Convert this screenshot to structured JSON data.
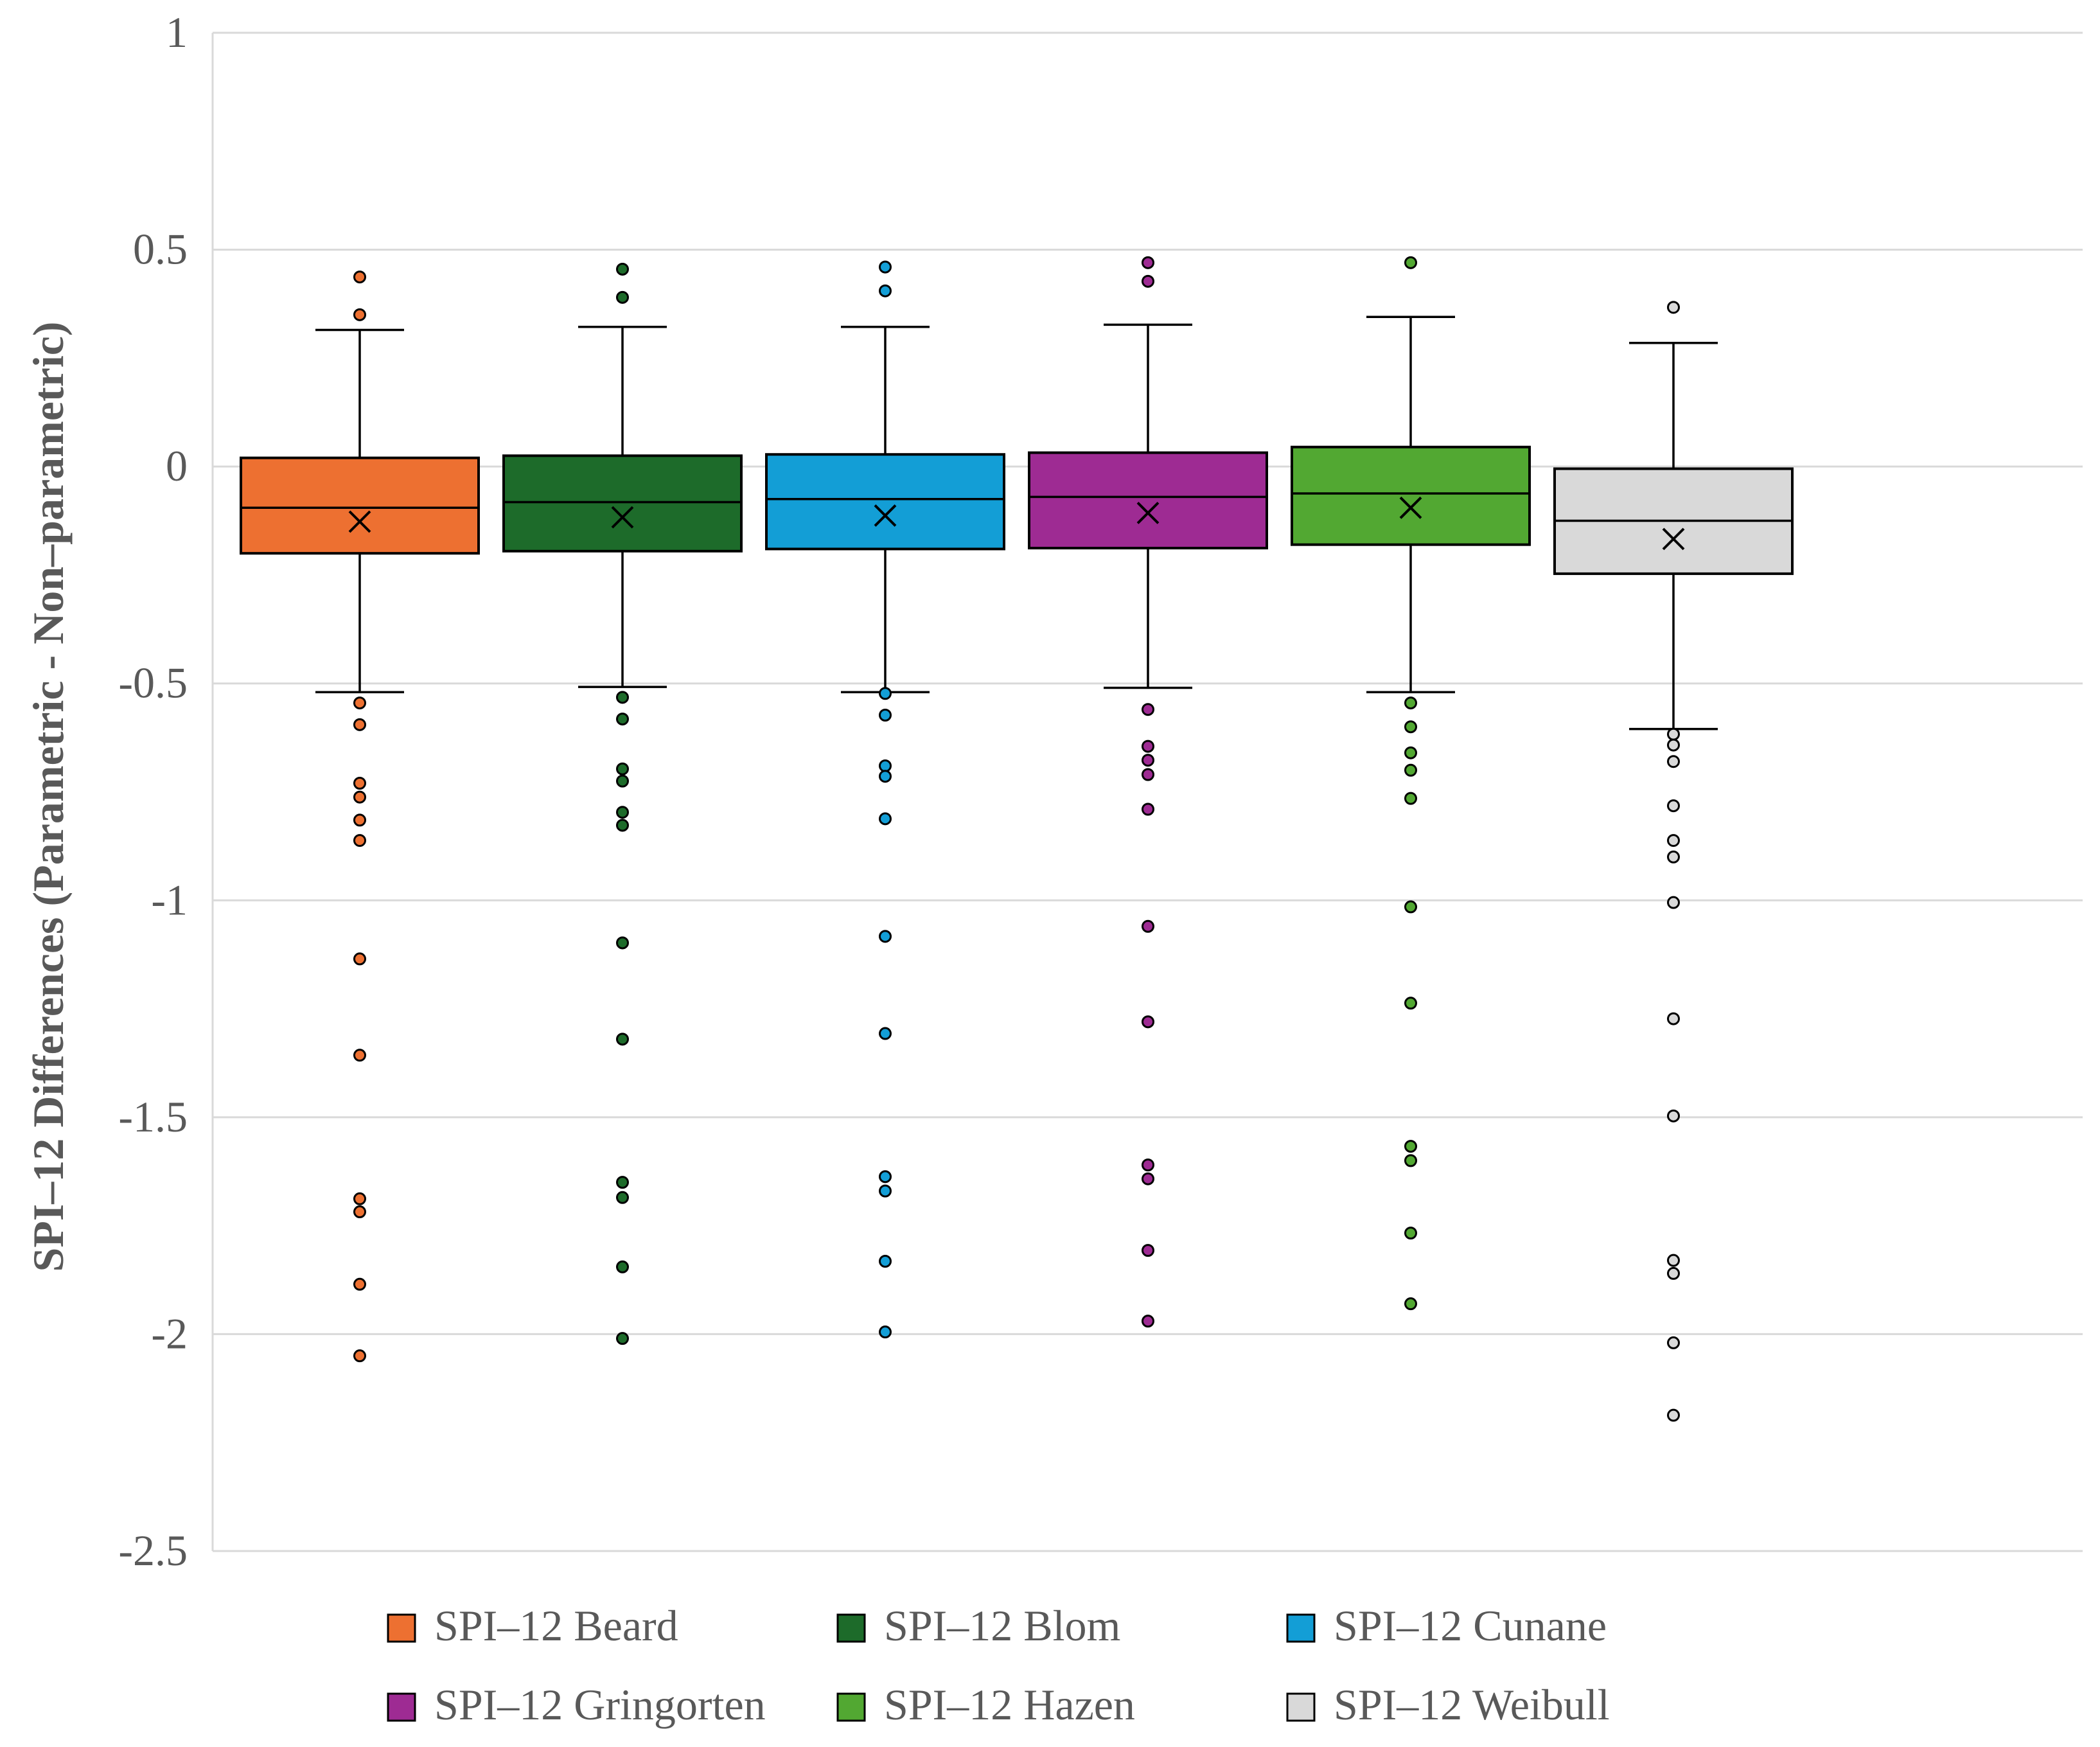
{
  "chart_data": {
    "type": "box",
    "title": "",
    "xlabel": "",
    "ylabel": "SPI–12 Differences  (Parametric - Non–parametric)",
    "ylim": [
      -2.5,
      1
    ],
    "yticks": [
      1,
      0.5,
      0,
      -0.5,
      -1,
      -1.5,
      -2,
      -2.5
    ],
    "ytick_labels": [
      "1",
      "0.5",
      "0",
      "-0.5",
      "-1",
      "-1.5",
      "-2",
      "-2.5"
    ],
    "grid": true,
    "legend_position": "bottom",
    "series": [
      {
        "name": "SPI–12 Beard",
        "color": "#ED7031",
        "q1": -0.2,
        "median": -0.095,
        "q3": 0.02,
        "mean": -0.127,
        "whisker_low": -0.52,
        "whisker_high": 0.315,
        "outliers": [
          0.437,
          0.35,
          -0.545,
          -0.595,
          -0.73,
          -0.762,
          -0.815,
          -0.862,
          -1.135,
          -1.357,
          -1.688,
          -1.718,
          -1.885,
          -2.05
        ]
      },
      {
        "name": "SPI–12 Blom",
        "color": "#1D6B2A",
        "q1": -0.195,
        "median": -0.082,
        "q3": 0.025,
        "mean": -0.117,
        "whisker_low": -0.508,
        "whisker_high": 0.322,
        "outliers": [
          0.455,
          0.39,
          -0.532,
          -0.582,
          -0.697,
          -0.725,
          -0.797,
          -0.827,
          -1.098,
          -1.32,
          -1.65,
          -1.685,
          -1.845,
          -2.01
        ]
      },
      {
        "name": "SPI–12 Cunane",
        "color": "#139ED6",
        "q1": -0.19,
        "median": -0.075,
        "q3": 0.028,
        "mean": -0.113,
        "whisker_low": -0.52,
        "whisker_high": 0.322,
        "outliers": [
          0.46,
          0.405,
          -0.523,
          -0.573,
          -0.69,
          -0.714,
          -0.812,
          -1.083,
          -1.307,
          -1.637,
          -1.67,
          -1.832,
          -1.995
        ]
      },
      {
        "name": "SPI–12 Gringorten",
        "color": "#9E2B93",
        "q1": -0.188,
        "median": -0.07,
        "q3": 0.032,
        "mean": -0.107,
        "whisker_low": -0.51,
        "whisker_high": 0.327,
        "outliers": [
          0.47,
          0.427,
          -0.56,
          -0.645,
          -0.677,
          -0.71,
          -0.79,
          -1.06,
          -1.28,
          -1.61,
          -1.642,
          -1.807,
          -1.97
        ]
      },
      {
        "name": "SPI–12 Hazen",
        "color": "#52A832",
        "q1": -0.18,
        "median": -0.062,
        "q3": 0.045,
        "mean": -0.095,
        "whisker_low": -0.52,
        "whisker_high": 0.345,
        "outliers": [
          0.47,
          -0.545,
          -0.6,
          -0.66,
          -0.7,
          -0.765,
          -1.015,
          -1.237,
          -1.567,
          -1.6,
          -1.767,
          -1.93
        ]
      },
      {
        "name": "SPI–12 Weibull",
        "color": "#D9D9D9",
        "q1": -0.247,
        "median": -0.125,
        "q3": -0.005,
        "mean": -0.167,
        "whisker_low": -0.605,
        "whisker_high": 0.285,
        "outliers": [
          0.367,
          -0.617,
          -0.642,
          -0.68,
          -0.782,
          -0.862,
          -0.9,
          -1.005,
          -1.273,
          -1.497,
          -1.83,
          -1.86,
          -2.02,
          -2.187
        ]
      }
    ]
  }
}
